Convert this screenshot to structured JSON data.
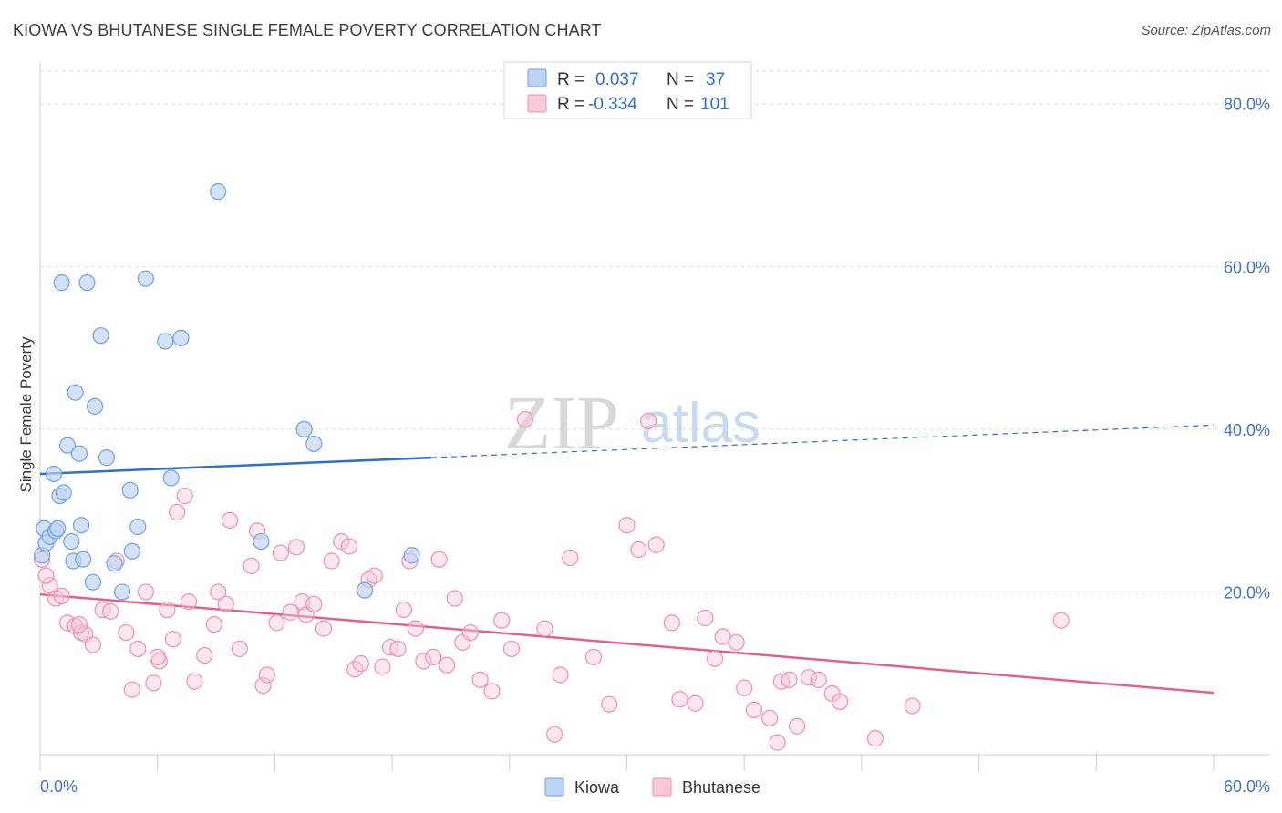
{
  "title": "KIOWA VS BHUTANESE SINGLE FEMALE POVERTY CORRELATION CHART",
  "source": "Source: ZipAtlas.com",
  "watermark": {
    "part1": "ZIP",
    "part2": "atlas"
  },
  "chart_data": {
    "type": "scatter",
    "title": "KIOWA VS BHUTANESE SINGLE FEMALE POVERTY CORRELATION CHART",
    "xlabel": "",
    "ylabel": "Single Female Poverty",
    "xlim": [
      0,
      60
    ],
    "ylim": [
      0,
      84
    ],
    "x_tick_labels": [
      "0.0%",
      "60.0%"
    ],
    "y_ticks": [
      20,
      40,
      60,
      80
    ],
    "y_tick_labels": [
      "20.0%",
      "40.0%",
      "60.0%",
      "80.0%"
    ],
    "legend": [
      {
        "name": "Kiowa",
        "r_label": "R =",
        "r_value": "0.037",
        "n_label": "N =",
        "n_value": "37",
        "color": "#6fa1e6",
        "fill": "#bcd3f5"
      },
      {
        "name": "Bhutanese",
        "r_label": "R =",
        "r_value": "-0.334",
        "n_label": "N =",
        "n_value": "101",
        "color": "#ee8fb0",
        "fill": "#f8c9d9"
      }
    ],
    "series": [
      {
        "name": "Kiowa",
        "color": "#6fa1e6",
        "trend": {
          "x0": 0,
          "y0": 34.5,
          "x1": 20,
          "y1": 36.5,
          "dash_to_x": 60,
          "dash_to_y": 40.5,
          "color": "#2e6fd1"
        },
        "points": [
          [
            0.1,
            24.5
          ],
          [
            0.2,
            27.8
          ],
          [
            0.3,
            26
          ],
          [
            0.5,
            26.8
          ],
          [
            0.7,
            34.5
          ],
          [
            0.8,
            27.5
          ],
          [
            0.9,
            27.8
          ],
          [
            1.0,
            31.8
          ],
          [
            1.1,
            58.0
          ],
          [
            1.2,
            32.2
          ],
          [
            1.4,
            38.0
          ],
          [
            1.6,
            26.2
          ],
          [
            1.7,
            23.8
          ],
          [
            1.8,
            44.5
          ],
          [
            2.0,
            37.0
          ],
          [
            2.1,
            28.2
          ],
          [
            2.2,
            24.0
          ],
          [
            2.4,
            58.0
          ],
          [
            2.7,
            21.2
          ],
          [
            2.8,
            42.8
          ],
          [
            3.1,
            51.5
          ],
          [
            3.4,
            36.5
          ],
          [
            3.8,
            23.5
          ],
          [
            4.2,
            20.0
          ],
          [
            4.6,
            32.5
          ],
          [
            4.7,
            25.0
          ],
          [
            5.0,
            28.0
          ],
          [
            5.4,
            58.5
          ],
          [
            6.4,
            50.8
          ],
          [
            6.7,
            34.0
          ],
          [
            7.2,
            51.2
          ],
          [
            9.1,
            69.2
          ],
          [
            11.3,
            26.2
          ],
          [
            13.5,
            40.0
          ],
          [
            14.0,
            38.2
          ],
          [
            16.6,
            20.2
          ],
          [
            19.0,
            24.5
          ]
        ]
      },
      {
        "name": "Bhutanese",
        "color": "#ee8fb0",
        "trend": {
          "x0": 0,
          "y0": 19.7,
          "x1": 60,
          "y1": 7.6,
          "color": "#e0608e"
        },
        "points": [
          [
            0.1,
            24.0
          ],
          [
            0.5,
            20.8
          ],
          [
            0.8,
            19.2
          ],
          [
            1.1,
            19.5
          ],
          [
            1.4,
            16.2
          ],
          [
            1.8,
            15.8
          ],
          [
            2.1,
            15.0
          ],
          [
            2.3,
            14.8
          ],
          [
            2.7,
            13.5
          ],
          [
            3.2,
            17.8
          ],
          [
            3.6,
            17.6
          ],
          [
            3.9,
            23.8
          ],
          [
            4.4,
            15.0
          ],
          [
            4.7,
            8.0
          ],
          [
            5.0,
            13.0
          ],
          [
            5.4,
            20.0
          ],
          [
            5.8,
            8.8
          ],
          [
            6.1,
            11.5
          ],
          [
            6.5,
            17.8
          ],
          [
            6.8,
            14.2
          ],
          [
            7.0,
            29.8
          ],
          [
            7.4,
            31.8
          ],
          [
            7.6,
            18.8
          ],
          [
            7.9,
            9.0
          ],
          [
            8.4,
            12.2
          ],
          [
            8.9,
            16.0
          ],
          [
            9.1,
            20.0
          ],
          [
            9.5,
            18.5
          ],
          [
            9.7,
            28.8
          ],
          [
            10.2,
            13.0
          ],
          [
            10.8,
            23.2
          ],
          [
            11.1,
            27.5
          ],
          [
            11.4,
            8.5
          ],
          [
            11.6,
            9.8
          ],
          [
            12.1,
            16.2
          ],
          [
            12.3,
            24.8
          ],
          [
            12.8,
            17.5
          ],
          [
            13.1,
            25.5
          ],
          [
            13.4,
            18.8
          ],
          [
            13.6,
            17.2
          ],
          [
            14.0,
            18.5
          ],
          [
            14.5,
            15.5
          ],
          [
            14.9,
            23.8
          ],
          [
            15.4,
            26.2
          ],
          [
            15.8,
            25.6
          ],
          [
            16.1,
            10.5
          ],
          [
            16.4,
            11.2
          ],
          [
            16.8,
            21.5
          ],
          [
            17.1,
            22.0
          ],
          [
            17.5,
            10.8
          ],
          [
            17.9,
            13.2
          ],
          [
            18.3,
            13.0
          ],
          [
            18.6,
            17.8
          ],
          [
            18.9,
            23.8
          ],
          [
            19.2,
            15.5
          ],
          [
            19.6,
            11.5
          ],
          [
            20.1,
            12.0
          ],
          [
            20.4,
            24.0
          ],
          [
            20.8,
            11.0
          ],
          [
            21.2,
            19.2
          ],
          [
            21.6,
            13.8
          ],
          [
            22.0,
            15.0
          ],
          [
            22.5,
            9.2
          ],
          [
            23.1,
            7.8
          ],
          [
            23.6,
            16.5
          ],
          [
            24.1,
            13.0
          ],
          [
            24.8,
            41.2
          ],
          [
            25.8,
            15.5
          ],
          [
            26.3,
            2.5
          ],
          [
            26.6,
            9.8
          ],
          [
            27.1,
            24.2
          ],
          [
            28.3,
            12.0
          ],
          [
            29.1,
            6.2
          ],
          [
            30.0,
            28.2
          ],
          [
            30.6,
            25.2
          ],
          [
            31.1,
            41.0
          ],
          [
            31.5,
            25.8
          ],
          [
            32.3,
            16.2
          ],
          [
            32.7,
            6.8
          ],
          [
            33.5,
            6.3
          ],
          [
            34.0,
            16.8
          ],
          [
            34.5,
            11.8
          ],
          [
            34.9,
            14.5
          ],
          [
            35.6,
            13.8
          ],
          [
            36.0,
            8.2
          ],
          [
            36.5,
            5.5
          ],
          [
            37.3,
            4.5
          ],
          [
            37.7,
            1.5
          ],
          [
            37.9,
            9.0
          ],
          [
            38.3,
            9.2
          ],
          [
            38.7,
            3.5
          ],
          [
            39.3,
            9.5
          ],
          [
            39.8,
            9.2
          ],
          [
            40.5,
            7.5
          ],
          [
            40.9,
            6.5
          ],
          [
            42.7,
            2.0
          ],
          [
            44.6,
            6.0
          ],
          [
            52.2,
            16.5
          ],
          [
            0.3,
            22.0
          ],
          [
            2.0,
            16.0
          ],
          [
            6.0,
            12.0
          ]
        ]
      }
    ]
  }
}
